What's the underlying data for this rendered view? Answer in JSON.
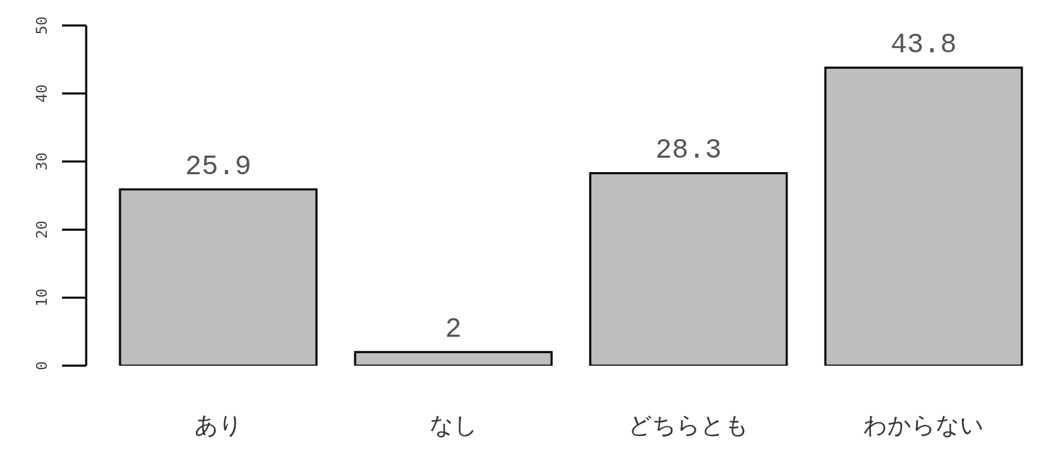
{
  "chart_data": {
    "type": "bar",
    "categories": [
      "あり",
      "なし",
      "どちらとも",
      "わからない"
    ],
    "values": [
      25.9,
      2,
      28.3,
      43.8
    ],
    "color": "#bebebe",
    "ylim": [
      0,
      50
    ],
    "yticks": [
      0,
      10,
      20,
      30,
      40,
      50
    ],
    "data_labels": true
  }
}
